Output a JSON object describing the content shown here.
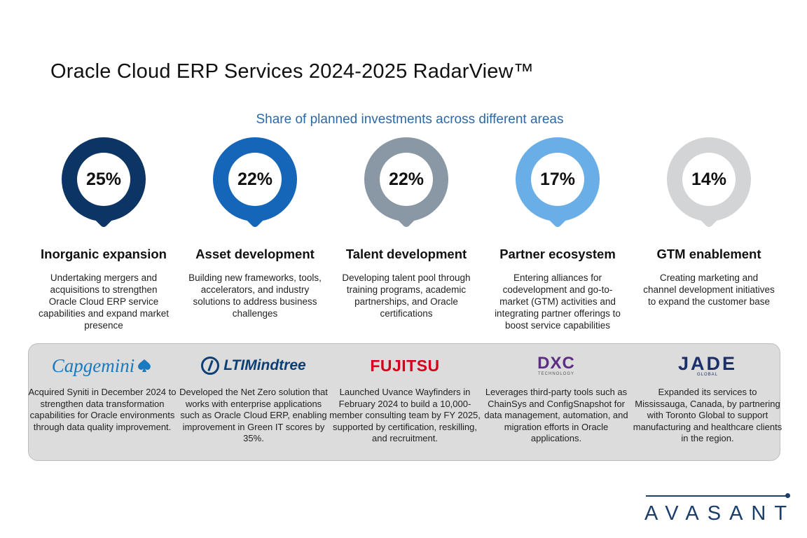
{
  "title": "Oracle Cloud ERP Services 2024-2025 RadarView™",
  "chart_data": {
    "type": "infographic",
    "subtitle": "Share of planned investments across different areas",
    "categories": [
      "Inorganic expansion",
      "Asset development",
      "Talent development",
      "Partner ecosystem",
      "GTM enablement"
    ],
    "values": [
      25,
      22,
      22,
      17,
      14
    ],
    "value_labels": [
      "25%",
      "22%",
      "22%",
      "17%",
      "14%"
    ],
    "descriptions": [
      "Undertaking mergers and acquisitions to strengthen Oracle Cloud ERP service capabilities and expand market presence",
      "Building new frameworks, tools, accelerators, and industry solutions to address business challenges",
      "Developing talent pool through training programs, academic partnerships, and Oracle certifications",
      "Entering alliances for codevelopment and go-to-market (GTM) activities and integrating partner offerings to boost service capabilities",
      "Creating marketing and channel development initiatives to expand the customer base"
    ],
    "colors": [
      "#0c3566",
      "#1565b8",
      "#8a98a6",
      "#6aaee8",
      "#d2d4d6"
    ]
  },
  "providers": [
    {
      "logo_text": "Capgemini",
      "logo_icon": "spade-icon",
      "text": "Acquired Syniti in December 2024 to strengthen data transformation capabilities for Oracle environments through data quality improvement."
    },
    {
      "logo_text": "LTIMindtree",
      "logo_icon": "lti-logo-icon",
      "text": "Developed the Net Zero solution that works with enterprise applications such as Oracle Cloud ERP, enabling improvement in Green IT scores by 35%."
    },
    {
      "logo_text": "FUJITSU",
      "logo_icon": "fujitsu-logo-icon",
      "text": "Launched Uvance Wayfinders in February 2024 to build a 10,000-member consulting team by FY 2025, supported by certification, reskilling, and recruitment."
    },
    {
      "logo_text": "DXC",
      "logo_subtext": "TECHNOLOGY",
      "logo_icon": "dxc-logo-icon",
      "text": "Leverages third-party tools such as ChainSys and ConfigSnapshot for data management, automation, and migration efforts in Oracle applications."
    },
    {
      "logo_text": "JADE",
      "logo_subtext": "GLOBAL",
      "logo_icon": "jade-logo-icon",
      "text": "Expanded its services to Mississauga, Canada, by partnering with Toronto Global to support manufacturing and healthcare clients in the region."
    }
  ],
  "brand": "AVASANT"
}
